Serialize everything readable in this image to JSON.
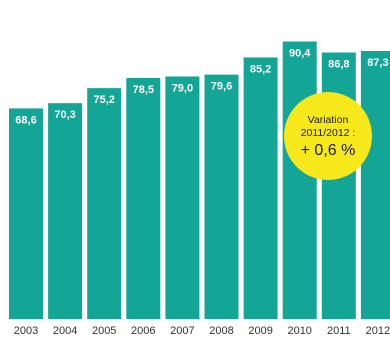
{
  "chart_data": {
    "type": "bar",
    "categories": [
      "2003",
      "2004",
      "2005",
      "2006",
      "2007",
      "2008",
      "2009",
      "2010",
      "2011",
      "2012"
    ],
    "values": [
      68.6,
      70.3,
      75.2,
      78.5,
      79.0,
      79.6,
      85.2,
      90.4,
      86.8,
      87.3
    ],
    "value_labels": [
      "68,6",
      "70,3",
      "75,2",
      "78,5",
      "79,0",
      "79,6",
      "85,2",
      "90,4",
      "86,8",
      "87,3"
    ],
    "title": "",
    "xlabel": "",
    "ylabel": "",
    "grid": false,
    "legend": "none",
    "colors": {
      "bar": "#13a596",
      "callout": "#f7e81c",
      "background": "#ffffff"
    },
    "annotation": {
      "line1": "Variation",
      "line2": "2011/2012 :",
      "line3": "+ 0,6 %"
    }
  }
}
